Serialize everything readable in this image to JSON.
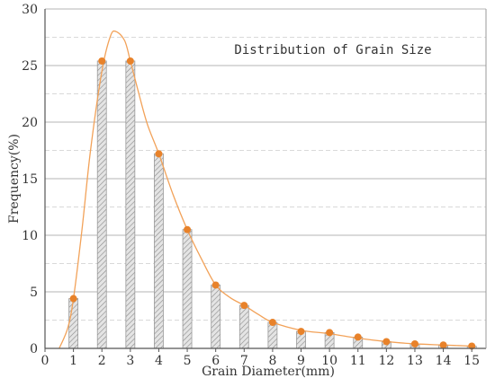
{
  "chart_data": {
    "type": "bar",
    "title": "Distribution of Grain Size",
    "xlabel": "Grain Diameter(mm)",
    "ylabel": "Frequency(%)",
    "x_ticks": [
      "0",
      "1",
      "2",
      "3",
      "4",
      "5",
      "6",
      "7",
      "8",
      "9",
      "10",
      "11",
      "12",
      "13",
      "14",
      "15"
    ],
    "y_ticks": [
      "0",
      "5",
      "10",
      "15",
      "20",
      "25",
      "30"
    ],
    "xlim": [
      0,
      15.5
    ],
    "ylim": [
      0,
      30
    ],
    "categories": [
      1,
      2,
      3,
      4,
      5,
      6,
      7,
      8,
      9,
      10,
      11,
      12,
      13,
      14,
      15
    ],
    "values": [
      4.4,
      25.4,
      25.4,
      17.2,
      10.5,
      5.6,
      3.8,
      2.3,
      1.5,
      1.4,
      1.0,
      0.6,
      0.4,
      0.3,
      0.2
    ],
    "fitted_curve": {
      "x": [
        0.5,
        0.8,
        1.0,
        1.3,
        1.6,
        2.0,
        2.3,
        2.5,
        2.8,
        3.0,
        3.3,
        3.6,
        4.0,
        4.5,
        5.0,
        5.5,
        6.0,
        6.5,
        7.0,
        7.5,
        8.0,
        9.0,
        10.0,
        11.0,
        12.0,
        13.0,
        14.0,
        15.0
      ],
      "y": [
        0,
        1.8,
        4.4,
        10.5,
        17.5,
        24.5,
        27.6,
        28.0,
        27.2,
        25.4,
        22.5,
        19.8,
        17.2,
        13.6,
        10.5,
        7.9,
        5.6,
        4.5,
        3.8,
        3.0,
        2.3,
        1.6,
        1.3,
        0.9,
        0.6,
        0.4,
        0.3,
        0.2
      ]
    },
    "bar_color": "#d8d8d8",
    "bar_hatch_color": "#8a8a8a",
    "point_color": "#e8822a",
    "curve_color": "#f2a259",
    "grid": true,
    "minor_grid": true
  }
}
